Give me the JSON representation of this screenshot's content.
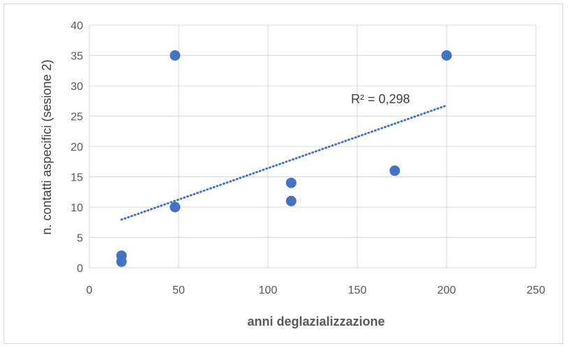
{
  "chart_data": {
    "type": "scatter",
    "x": [
      18,
      18,
      48,
      48,
      113,
      113,
      171,
      200
    ],
    "y": [
      1,
      2,
      10,
      35,
      11,
      14,
      16,
      35
    ],
    "xlim": [
      0,
      250
    ],
    "ylim": [
      0,
      40
    ],
    "xticks": [
      "0",
      "50",
      "100",
      "150",
      "200",
      "250"
    ],
    "yticks": [
      "0",
      "5",
      "10",
      "15",
      "20",
      "25",
      "30",
      "35",
      "40"
    ],
    "xlabel": "anni deglazializzazione",
    "ylabel": "n. contatti aspecifici (sesione 2)",
    "trendline": {
      "type": "linear",
      "x_start": 18,
      "x_end": 200,
      "r2_label": "R² = 0,298"
    },
    "grid": true,
    "colors": {
      "points": "#4472c4",
      "trendline": "#4472c4",
      "grid": "#d9d9d9"
    }
  }
}
